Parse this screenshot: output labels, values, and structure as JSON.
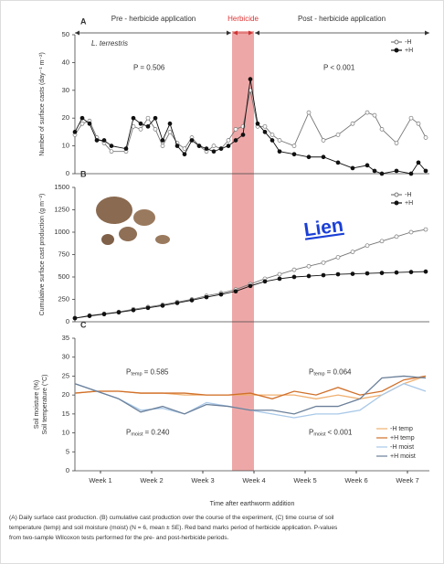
{
  "header": {
    "pre": "Pre - herbicide application",
    "herbicide": "Herbicide",
    "post": "Post - herbicide application"
  },
  "herbicide_band": [
    21.5,
    24.5
  ],
  "x_axis_label": "Time after earthworm addition",
  "caption": [
    "(A) Daily surface cast production. (B) cumulative cast production over the course of the experiment, (C) time course of soil",
    "temperature (temp) and soil moisture (moist) (N = 6, mean ± SE). Red band marks period of herbicide application. P-values",
    "from two-sample Wilcoxon tests performed for the pre- and post-herbicide periods."
  ],
  "link": "Lien",
  "chart_data": [
    {
      "type": "line",
      "panel": "A",
      "species": "L. terrestris",
      "y_label": "Number of surface casts (day⁻¹ m⁻²)",
      "annotations": [
        {
          "text": "P = 0.506",
          "x": 8,
          "y": 38
        },
        {
          "text": "P < 0.001",
          "x": 34,
          "y": 38
        }
      ],
      "xlim": [
        0,
        48.5
      ],
      "ylim": [
        0,
        50
      ],
      "yticks": [
        0,
        10,
        20,
        30,
        40,
        50
      ],
      "x": [
        0,
        1,
        2,
        3,
        4,
        5,
        7,
        8,
        9,
        10,
        11,
        12,
        13,
        14,
        15,
        16,
        17,
        18,
        19,
        20,
        21,
        22,
        23,
        24,
        25,
        26,
        27,
        28,
        30,
        32,
        34,
        36,
        38,
        40,
        41,
        42,
        44,
        46,
        47,
        48
      ],
      "series": [
        {
          "name": "-H",
          "color": "#777777",
          "marker": "open",
          "values": [
            14,
            18,
            19,
            13,
            11,
            8,
            8,
            17,
            16,
            20,
            16,
            10,
            15,
            11,
            9,
            13,
            10,
            8,
            10,
            9,
            12,
            16,
            17,
            30,
            17,
            17,
            14,
            12,
            10,
            22,
            12,
            14,
            18,
            22,
            21,
            16,
            11,
            20,
            18,
            13
          ]
        },
        {
          "name": "+H",
          "color": "#111111",
          "marker": "filled",
          "values": [
            15,
            20,
            18,
            12,
            12,
            10,
            9,
            20,
            18,
            17,
            20,
            12,
            18,
            10,
            7,
            12,
            10,
            9,
            8,
            9,
            10,
            12,
            14,
            34,
            18,
            15,
            12,
            8,
            7,
            6,
            6,
            4,
            2,
            3,
            1,
            0,
            1,
            0,
            4,
            1
          ]
        }
      ]
    },
    {
      "type": "line",
      "panel": "B",
      "y_label": "Cumulative surface cast production (g m⁻²)",
      "xlim": [
        0,
        48.5
      ],
      "ylim": [
        0,
        1500
      ],
      "yticks": [
        0,
        250,
        500,
        750,
        1000,
        1250,
        1500
      ],
      "x": [
        0,
        2,
        4,
        6,
        8,
        10,
        12,
        14,
        16,
        18,
        20,
        22,
        24,
        26,
        28,
        30,
        32,
        34,
        36,
        38,
        40,
        42,
        44,
        46,
        48
      ],
      "series": [
        {
          "name": "-H",
          "color": "#777777",
          "marker": "open",
          "values": [
            40,
            70,
            90,
            110,
            140,
            165,
            190,
            220,
            250,
            290,
            320,
            360,
            420,
            480,
            530,
            580,
            620,
            660,
            720,
            780,
            850,
            900,
            950,
            1000,
            1030
          ]
        },
        {
          "name": "+H",
          "color": "#111111",
          "marker": "filled",
          "values": [
            40,
            65,
            85,
            105,
            130,
            155,
            180,
            210,
            240,
            275,
            305,
            340,
            400,
            450,
            480,
            500,
            510,
            520,
            530,
            535,
            540,
            545,
            550,
            555,
            560
          ]
        }
      ]
    },
    {
      "type": "line",
      "panel": "C",
      "y_label": [
        "Soil moisture (%)",
        "Soil temperature (°C)"
      ],
      "annotations": [
        {
          "text": "P",
          "sub": "temp",
          "rest": "= 0.585",
          "x": 7,
          "y": 26
        },
        {
          "text": "P",
          "sub": "temp",
          "rest": "= 0.064",
          "x": 32,
          "y": 26
        },
        {
          "text": "P",
          "sub": "moist",
          "rest": "= 0.240",
          "x": 7,
          "y": 10
        },
        {
          "text": "P",
          "sub": "moist",
          "rest": "< 0.001",
          "x": 32,
          "y": 10
        }
      ],
      "xlim": [
        0,
        48.5
      ],
      "ylim": [
        0,
        35
      ],
      "yticks": [
        0,
        5,
        10,
        15,
        20,
        25,
        30,
        35
      ],
      "xticks": [
        {
          "value": 3.5,
          "label": "Week 1"
        },
        {
          "value": 10.5,
          "label": "Week 2"
        },
        {
          "value": 17.5,
          "label": "Week 3"
        },
        {
          "value": 24.5,
          "label": "Week 4"
        },
        {
          "value": 31.5,
          "label": "Week 5"
        },
        {
          "value": 38.5,
          "label": "Week 6"
        },
        {
          "value": 45.5,
          "label": "Week 7"
        }
      ],
      "x": [
        0,
        3,
        6,
        9,
        12,
        15,
        18,
        21,
        24,
        27,
        30,
        33,
        36,
        39,
        42,
        45,
        48
      ],
      "series": [
        {
          "name": "-H temp",
          "color": "#f0b070",
          "values": [
            20.5,
            21,
            21,
            20.5,
            20.5,
            20,
            20,
            20,
            20,
            20,
            20,
            19,
            20,
            19,
            20,
            23,
            25
          ]
        },
        {
          "name": "+H temp",
          "color": "#d0702a",
          "values": [
            20.5,
            21,
            21,
            20.5,
            20.5,
            20.5,
            20,
            20,
            20.5,
            19,
            21,
            20,
            22,
            20,
            21,
            24,
            25
          ]
        },
        {
          "name": "-H moist",
          "color": "#a8c8e8",
          "values": [
            23,
            21,
            19,
            16,
            16.5,
            15,
            18,
            17,
            16,
            15,
            14,
            15,
            15,
            16,
            20,
            23,
            21
          ]
        },
        {
          "name": "+H moist",
          "color": "#6a7f99",
          "values": [
            23,
            21,
            19,
            15.5,
            17,
            15,
            17.5,
            17,
            16,
            16,
            15,
            17,
            17,
            19,
            24.5,
            25,
            24.5
          ]
        }
      ]
    }
  ]
}
